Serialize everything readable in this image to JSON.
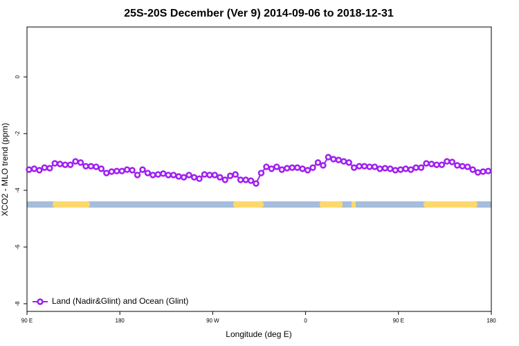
{
  "chart_data": {
    "type": "line",
    "title": "25S-20S December (Ver 9)   2014-09-06 to 2018-12-31",
    "x_label": "Longitude (deg E)",
    "y_label": "XCO2 - MLO trend (ppm)",
    "x": [
      92,
      97,
      102,
      107,
      112,
      117,
      122,
      127,
      132,
      137,
      142,
      147,
      152,
      157,
      162,
      167,
      172,
      177,
      182,
      187,
      192,
      197,
      202,
      207,
      212,
      217,
      222,
      227,
      232,
      237,
      242,
      247,
      252,
      257,
      262,
      267,
      272,
      277,
      282,
      287,
      292,
      297,
      302,
      307,
      312,
      317,
      322,
      327,
      332,
      337,
      342,
      347,
      352,
      357,
      362,
      367,
      372,
      377,
      382,
      387,
      392,
      397,
      402,
      407,
      412,
      417,
      422,
      427,
      432,
      437,
      442,
      447,
      452,
      457,
      462,
      467,
      472,
      477,
      482,
      487,
      492,
      497,
      502,
      507,
      512,
      517,
      522,
      527,
      532,
      537
    ],
    "series": [
      {
        "name": "Land (Nadir&Glint) and Ocean (Glint)",
        "color": "#a020f0",
        "values": [
          -3.27,
          -3.24,
          -3.29,
          -3.2,
          -3.22,
          -3.05,
          -3.07,
          -3.1,
          -3.1,
          -2.98,
          -3.02,
          -3.15,
          -3.15,
          -3.17,
          -3.24,
          -3.39,
          -3.34,
          -3.32,
          -3.32,
          -3.27,
          -3.29,
          -3.46,
          -3.27,
          -3.39,
          -3.46,
          -3.44,
          -3.41,
          -3.46,
          -3.46,
          -3.51,
          -3.54,
          -3.46,
          -3.54,
          -3.59,
          -3.44,
          -3.46,
          -3.46,
          -3.54,
          -3.63,
          -3.49,
          -3.44,
          -3.63,
          -3.63,
          -3.66,
          -3.76,
          -3.39,
          -3.17,
          -3.24,
          -3.17,
          -3.27,
          -3.22,
          -3.2,
          -3.2,
          -3.24,
          -3.29,
          -3.2,
          -3.02,
          -3.12,
          -2.83,
          -2.9,
          -2.93,
          -2.98,
          -3.02,
          -3.2,
          -3.15,
          -3.15,
          -3.17,
          -3.17,
          -3.24,
          -3.22,
          -3.24,
          -3.29,
          -3.27,
          -3.24,
          -3.27,
          -3.2,
          -3.2,
          -3.05,
          -3.07,
          -3.1,
          -3.1,
          -2.98,
          -3.0,
          -3.12,
          -3.15,
          -3.17,
          -3.27,
          -3.37,
          -3.34,
          -3.32
        ]
      }
    ],
    "xlim": [
      90,
      540
    ],
    "xticks": [
      {
        "value": 90,
        "label": "90 E"
      },
      180,
      {
        "value": 270,
        "label": "90 W"
      },
      {
        "value": 360,
        "label": "0"
      },
      {
        "value": 450,
        "label": "90 E"
      },
      {
        "value": 540,
        "label": "180"
      }
    ],
    "ylim": [
      -8.27,
      1.76
    ],
    "yticks": [
      0,
      -2,
      -4,
      -6,
      -8
    ],
    "legend_position": "bottom-left"
  }
}
